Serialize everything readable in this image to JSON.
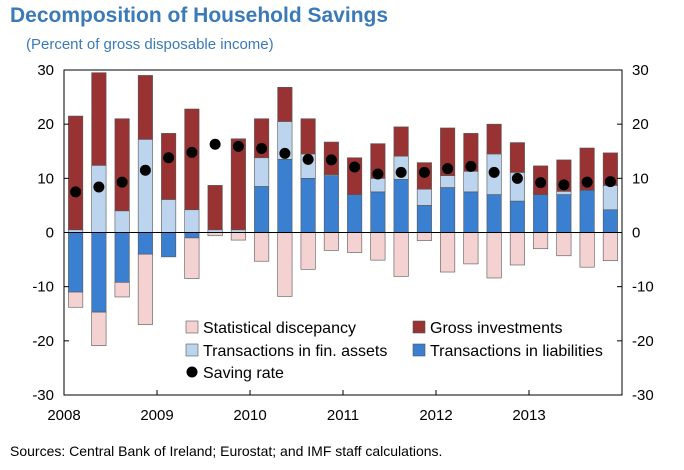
{
  "header": {
    "title": "Decomposition of Household Savings",
    "subtitle": "(Percent of gross disposable income)"
  },
  "footer": {
    "source": "Sources: Central Bank of Ireland; Eurostat; and IMF staff calculations."
  },
  "colors": {
    "statistical_discrepancy": "#f5d2d2",
    "gross_investments": "#993333",
    "transactions_fin_assets": "#bcd4ee",
    "transactions_liabilities": "#3a7fd0",
    "saving_rate": "#000000",
    "bar_outline": "#555555"
  },
  "chart_data": {
    "type": "bar",
    "stacked": true,
    "title": "Decomposition of Household Savings",
    "subtitle": "(Percent of gross disposable income)",
    "ylim": [
      -30,
      30
    ],
    "yticks": [
      -30,
      -20,
      -10,
      0,
      10,
      20,
      30
    ],
    "y_axis_both_sides": true,
    "grid": false,
    "legend_position": "bottom-right",
    "frequency": "quarterly",
    "x_labels": [
      "2008",
      "2009",
      "2010",
      "2011",
      "2012",
      "2013"
    ],
    "categories": [
      "2008Q1",
      "2008Q2",
      "2008Q3",
      "2008Q4",
      "2009Q1",
      "2009Q2",
      "2009Q3",
      "2009Q4",
      "2010Q1",
      "2010Q2",
      "2010Q3",
      "2010Q4",
      "2011Q1",
      "2011Q2",
      "2011Q3",
      "2011Q4",
      "2012Q1",
      "2012Q2",
      "2012Q3",
      "2012Q4",
      "2013Q1",
      "2013Q2",
      "2013Q3",
      "2013Q4"
    ],
    "series": [
      {
        "name": "Transactions in liabilities",
        "kind": "bar",
        "values": [
          -11,
          -14.7,
          -9.2,
          -4,
          -4.5,
          -1,
          0,
          0,
          8.5,
          13.5,
          10,
          10.5,
          7,
          7.5,
          9.8,
          5,
          8.3,
          7.5,
          7,
          5.8,
          7,
          7,
          7.8,
          4.2
        ]
      },
      {
        "name": "Transactions in fin. assets",
        "kind": "bar",
        "values": [
          0.5,
          12.4,
          4,
          17.2,
          6.1,
          4.2,
          0.5,
          0.5,
          5.3,
          7,
          4.5,
          0.2,
          0,
          2.5,
          4.3,
          3,
          2.2,
          3.8,
          7.5,
          5.3,
          0,
          0.6,
          0,
          4.5
        ]
      },
      {
        "name": "Gross investments",
        "kind": "bar",
        "values": [
          21,
          17.1,
          17,
          11.8,
          12.2,
          18.6,
          8.2,
          16.8,
          7.2,
          6.3,
          6.5,
          6,
          6.8,
          6.4,
          5.4,
          4.9,
          8.8,
          7,
          5.5,
          5.5,
          5.3,
          5.8,
          7.8,
          6
        ]
      },
      {
        "name": "Statistical discepancy",
        "kind": "bar",
        "values": [
          -2.8,
          -6.2,
          -2.7,
          -13,
          0,
          -7.5,
          -0.6,
          -1.4,
          -5.3,
          -11.8,
          -6.8,
          -3.3,
          -3.7,
          -5.1,
          -8.1,
          -1.5,
          -7.3,
          -5.8,
          -8.4,
          -6,
          -3,
          -4.3,
          -6.4,
          -5.2
        ]
      },
      {
        "name": "Saving rate",
        "kind": "marker",
        "values": [
          7.5,
          8.4,
          9.3,
          11.5,
          13.8,
          14.8,
          16.3,
          15.9,
          15.5,
          14.6,
          13.5,
          13.4,
          12.1,
          10.8,
          11.1,
          11.1,
          11.8,
          12.2,
          11.1,
          10,
          9.2,
          8.8,
          9.3,
          9.4
        ]
      }
    ],
    "legend": [
      {
        "label": "Statistical discepancy",
        "color_key": "statistical_discrepancy",
        "marker": "square"
      },
      {
        "label": "Gross investments",
        "color_key": "gross_investments",
        "marker": "square"
      },
      {
        "label": "Transactions in fin. assets",
        "color_key": "transactions_fin_assets",
        "marker": "square"
      },
      {
        "label": "Transactions in liabilities",
        "color_key": "transactions_liabilities",
        "marker": "square"
      },
      {
        "label": "Saving rate",
        "color_key": "saving_rate",
        "marker": "circle"
      }
    ]
  }
}
